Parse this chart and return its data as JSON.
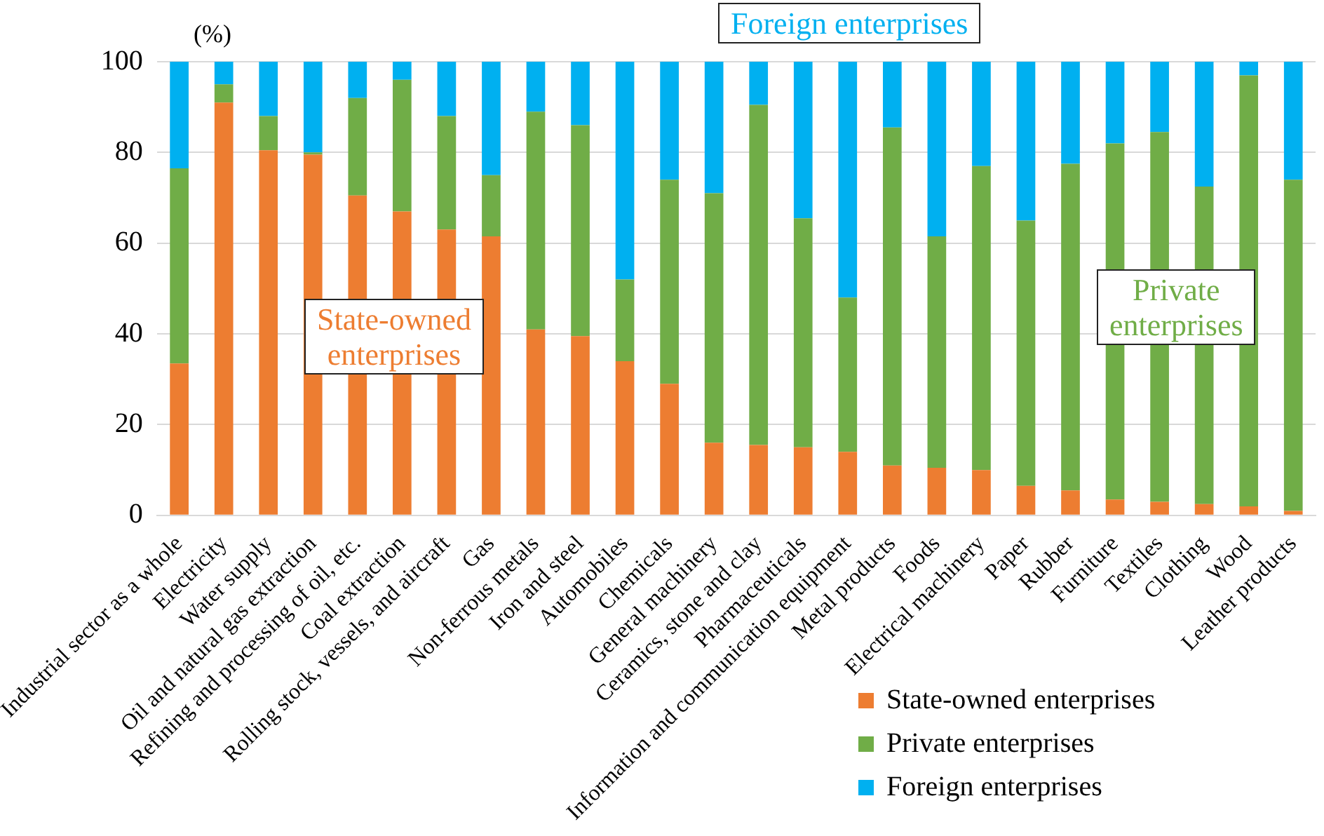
{
  "chart_data": {
    "type": "bar",
    "stacked": true,
    "ylabel": "(%)",
    "categories": [
      "Industrial sector as a whole",
      "Electricity",
      "Water supply",
      "Oil and natural gas extraction",
      "Refining and processing of oil, etc.",
      "Coal extraction",
      "Rolling stock, vessels, and aircraft",
      "Gas",
      "Non-ferrous metals",
      "Iron and steel",
      "Automobiles",
      "Chemicals",
      "General machinery",
      "Ceramics, stone and clay",
      "Pharmaceuticals",
      "Information and communication equipment",
      "Metal products",
      "Foods",
      "Electrical machinery",
      "Paper",
      "Rubber",
      "Furniture",
      "Textiles",
      "Clothing",
      "Wood",
      "Leather products"
    ],
    "series": [
      {
        "name": "State-owned enterprises",
        "color": "#ed7d31",
        "values": [
          33.5,
          91,
          80.5,
          79.5,
          70.5,
          67,
          63,
          61.5,
          41,
          39.5,
          34,
          29,
          16,
          15.5,
          15,
          14,
          11,
          10.5,
          10,
          6.5,
          5.5,
          3.5,
          3,
          2.5,
          2,
          1
        ]
      },
      {
        "name": "Private enterprises",
        "color": "#70ad47",
        "values": [
          43,
          4,
          7.5,
          0.5,
          21.5,
          29,
          25,
          13.5,
          48,
          46.5,
          18,
          45,
          55,
          75,
          50.5,
          34,
          74.5,
          51,
          67,
          58.5,
          72,
          78.5,
          81.5,
          70,
          95,
          73
        ]
      },
      {
        "name": "Foreign enterprises",
        "color": "#00b0f0",
        "values": [
          23.5,
          5,
          12,
          20,
          8,
          4,
          12,
          25,
          11,
          14,
          48,
          26,
          29,
          9.5,
          34.5,
          52,
          14.5,
          38.5,
          23,
          35,
          22.5,
          18,
          15.5,
          27.5,
          3,
          26
        ]
      }
    ],
    "ylim": [
      0,
      100
    ],
    "yticks": [
      0,
      20,
      40,
      60,
      80,
      100
    ],
    "grid": "y",
    "legend": "bottom right",
    "annotations": [
      "State-owned enterprises",
      "Private enterprises",
      "Foreign enterprises"
    ]
  }
}
